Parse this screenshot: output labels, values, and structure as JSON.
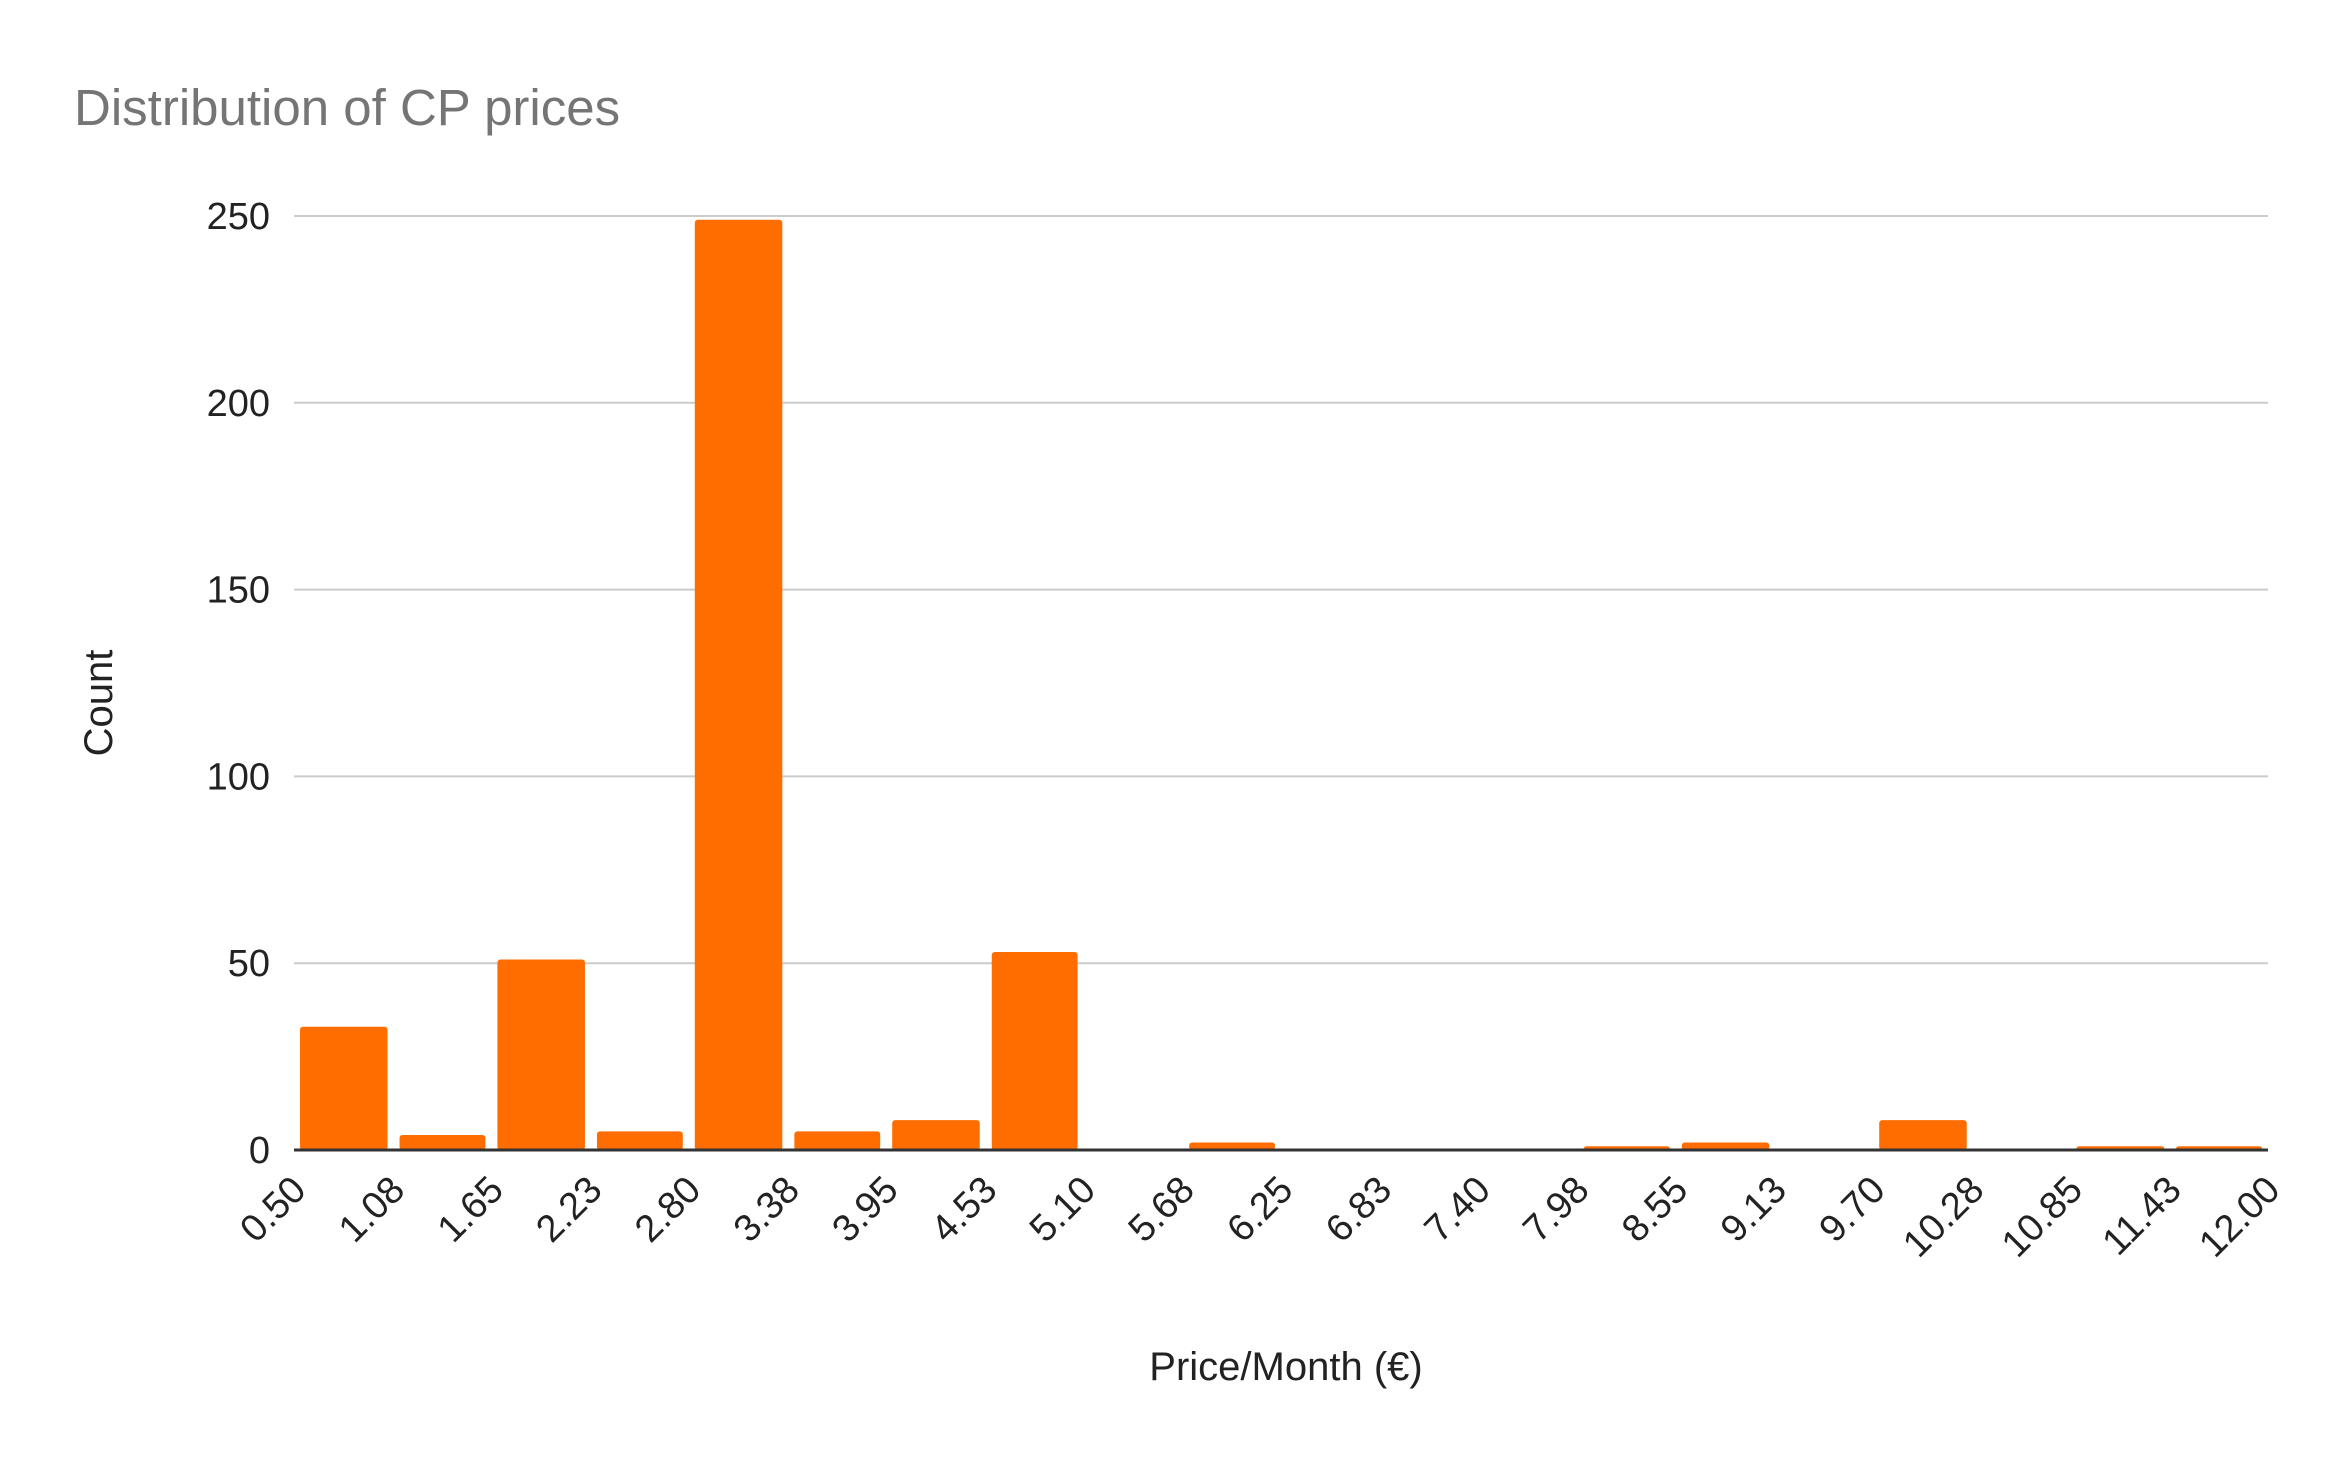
{
  "chart_data": {
    "type": "bar",
    "title": "Distribution of CP prices",
    "xlabel": "Price/Month (€)",
    "ylabel": "Count",
    "x_tick_labels": [
      "0.50",
      "1.08",
      "1.65",
      "2.23",
      "2.80",
      "3.38",
      "3.95",
      "4.53",
      "5.10",
      "5.68",
      "6.25",
      "6.83",
      "7.40",
      "7.98",
      "8.55",
      "9.13",
      "9.70",
      "10.28",
      "10.85",
      "11.43",
      "12.00"
    ],
    "y_ticks": [
      0,
      50,
      100,
      150,
      200,
      250
    ],
    "ylim": [
      0,
      250
    ],
    "xlim": [
      0.5,
      12.0
    ],
    "grid": true,
    "bar_color": "#ff6d01",
    "bins": [
      {
        "start": 0.5,
        "end": 1.08,
        "count": 33
      },
      {
        "start": 1.08,
        "end": 1.65,
        "count": 4
      },
      {
        "start": 1.65,
        "end": 2.23,
        "count": 51
      },
      {
        "start": 2.23,
        "end": 2.8,
        "count": 5
      },
      {
        "start": 2.8,
        "end": 3.38,
        "count": 249
      },
      {
        "start": 3.38,
        "end": 3.95,
        "count": 5
      },
      {
        "start": 3.95,
        "end": 4.53,
        "count": 8
      },
      {
        "start": 4.53,
        "end": 5.1,
        "count": 53
      },
      {
        "start": 5.1,
        "end": 5.68,
        "count": 0
      },
      {
        "start": 5.68,
        "end": 6.25,
        "count": 2
      },
      {
        "start": 6.25,
        "end": 6.83,
        "count": 0
      },
      {
        "start": 6.83,
        "end": 7.4,
        "count": 0
      },
      {
        "start": 7.4,
        "end": 7.98,
        "count": 0
      },
      {
        "start": 7.98,
        "end": 8.55,
        "count": 1
      },
      {
        "start": 8.55,
        "end": 9.13,
        "count": 2
      },
      {
        "start": 9.13,
        "end": 9.7,
        "count": 0
      },
      {
        "start": 9.7,
        "end": 10.28,
        "count": 8
      },
      {
        "start": 10.28,
        "end": 10.85,
        "count": 0
      },
      {
        "start": 10.85,
        "end": 11.43,
        "count": 1
      },
      {
        "start": 11.43,
        "end": 12.0,
        "count": 1
      }
    ]
  }
}
